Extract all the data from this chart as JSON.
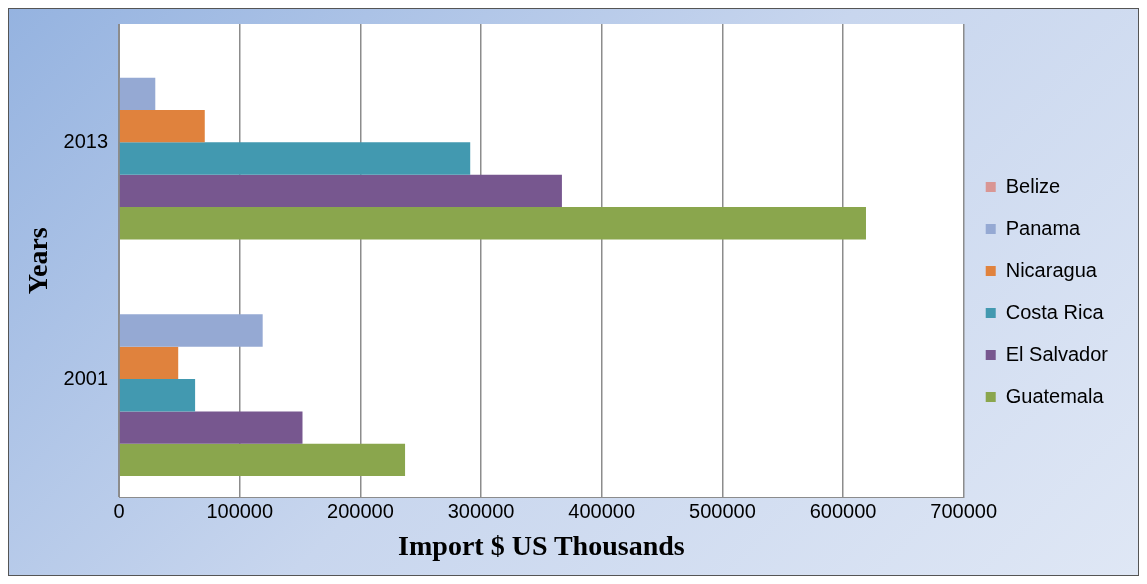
{
  "chart_data": {
    "type": "bar",
    "orientation": "horizontal",
    "xlabel": "Import $ US Thousands",
    "ylabel": "Years",
    "categories": [
      "2013",
      "2001"
    ],
    "series": [
      {
        "name": "Belize",
        "color": "#d99694",
        "values": [
          0,
          0
        ]
      },
      {
        "name": "Panama",
        "color": "#95a9d3",
        "values": [
          30000,
          119000
        ]
      },
      {
        "name": "Nicaragua",
        "color": "#e0823d",
        "values": [
          71000,
          49000
        ]
      },
      {
        "name": "Costa Rica",
        "color": "#4299b0",
        "values": [
          291000,
          63000
        ]
      },
      {
        "name": "El Salvador",
        "color": "#77578f",
        "values": [
          367000,
          152000
        ]
      },
      {
        "name": "Guatemala",
        "color": "#8aa64d",
        "values": [
          619000,
          237000
        ]
      }
    ],
    "xlim": [
      0,
      700000
    ],
    "xticks": [
      0,
      100000,
      200000,
      300000,
      400000,
      500000,
      600000,
      700000
    ],
    "grid": "x",
    "legend": "right"
  }
}
